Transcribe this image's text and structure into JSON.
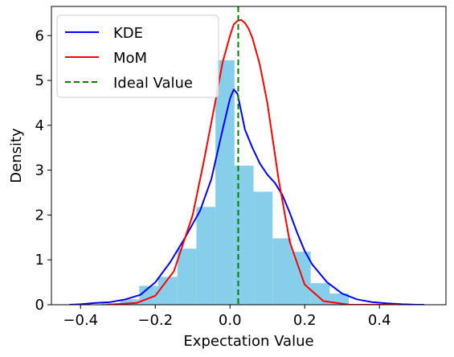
{
  "chart_data": {
    "type": "histogram",
    "title": "",
    "xlabel": "Expectation Value",
    "ylabel": "Density",
    "xlim": [
      -0.478,
      0.578
    ],
    "ylim": [
      0,
      6.65
    ],
    "x_ticks": [
      -0.4,
      -0.2,
      0.0,
      0.2,
      0.4
    ],
    "x_tick_labels": [
      "−0.4",
      "−0.2",
      "0.0",
      "0.2",
      "0.4"
    ],
    "y_ticks": [
      0,
      1,
      2,
      3,
      4,
      5,
      6
    ],
    "y_tick_labels": [
      "0",
      "1",
      "2",
      "3",
      "4",
      "5",
      "6"
    ],
    "grid": false,
    "legend_position": "top-left",
    "histogram": {
      "color": "#87CEEB",
      "bin_edges": [
        -0.345,
        -0.294,
        -0.243,
        -0.192,
        -0.141,
        -0.09,
        -0.039,
        0.012,
        0.063,
        0.114,
        0.165,
        0.216,
        0.267,
        0.318
      ],
      "densities": [
        0.03,
        0.12,
        0.42,
        0.62,
        1.25,
        2.18,
        5.45,
        3.1,
        2.52,
        1.48,
        1.18,
        0.48,
        0.25
      ]
    },
    "series": [
      {
        "name": "KDE",
        "color": "#0000FF",
        "style": "solid",
        "x": [
          -0.43,
          -0.4,
          -0.36,
          -0.32,
          -0.28,
          -0.24,
          -0.2,
          -0.16,
          -0.12,
          -0.08,
          -0.05,
          -0.02,
          0.0,
          0.01,
          0.02,
          0.04,
          0.06,
          0.08,
          0.1,
          0.12,
          0.14,
          0.16,
          0.18,
          0.2,
          0.22,
          0.26,
          0.3,
          0.34,
          0.38,
          0.42,
          0.46,
          0.5,
          0.52
        ],
        "y": [
          0.0,
          0.01,
          0.04,
          0.06,
          0.12,
          0.22,
          0.5,
          0.95,
          1.5,
          2.1,
          2.8,
          3.9,
          4.6,
          4.8,
          4.7,
          3.9,
          3.5,
          3.15,
          2.9,
          2.72,
          2.45,
          2.05,
          1.6,
          1.2,
          0.9,
          0.5,
          0.25,
          0.12,
          0.06,
          0.03,
          0.01,
          0.0,
          0.0
        ]
      },
      {
        "name": "MoM",
        "color": "#FF0000",
        "style": "solid",
        "x": [
          -0.33,
          -0.25,
          -0.2,
          -0.15,
          -0.1,
          -0.07,
          -0.04,
          -0.02,
          0.0,
          0.01,
          0.02,
          0.03,
          0.04,
          0.05,
          0.06,
          0.08,
          0.1,
          0.13,
          0.16,
          0.2,
          0.25,
          0.32,
          0.45
        ],
        "y": [
          0.0,
          0.04,
          0.2,
          0.75,
          2.0,
          3.2,
          4.5,
          5.4,
          6.0,
          6.25,
          6.33,
          6.35,
          6.28,
          6.15,
          5.95,
          5.35,
          4.5,
          2.8,
          1.4,
          0.45,
          0.08,
          0.0,
          0.0
        ]
      },
      {
        "name": "Ideal Value",
        "color": "#008000",
        "style": "dashed",
        "x_value": 0.022
      }
    ]
  }
}
